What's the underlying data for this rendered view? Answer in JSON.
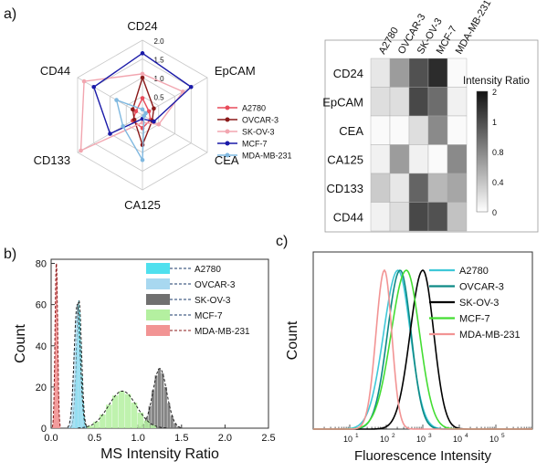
{
  "panel_labels": {
    "a": "a)",
    "b": "b)",
    "c": "c)"
  },
  "colors": {
    "A2780": "#e84c5b",
    "OVCAR-3": "#8b1a1a",
    "SK-OV-3": "#f2a6b0",
    "MCF-7": "#1a1aa8",
    "MDA-MB-231": "#7fb8e0"
  },
  "chart_data": [
    {
      "type": "radar",
      "panel": "a-left",
      "axes": [
        "CD24",
        "EpCAM",
        "CEA",
        "CA125",
        "CD133",
        "CD44"
      ],
      "rlim": [
        0,
        2.0
      ],
      "rticks": [
        "0.5",
        "1.0",
        "1.5",
        "2.0"
      ],
      "legend_position": "right",
      "series": [
        {
          "name": "A2780",
          "values": [
            0.45,
            0.2,
            0.25,
            0.35,
            0.3,
            0.2
          ]
        },
        {
          "name": "OVCAR-3",
          "values": [
            1.0,
            0.35,
            0.3,
            0.8,
            0.25,
            0.3
          ]
        },
        {
          "name": "SK-OV-3",
          "values": [
            1.1,
            1.25,
            0.5,
            0.2,
            1.9,
            1.8
          ]
        },
        {
          "name": "MCF-7",
          "values": [
            1.65,
            1.5,
            0.35,
            0.1,
            1.0,
            1.5
          ]
        },
        {
          "name": "MDA-MB-231",
          "values": [
            0.15,
            0.1,
            0.05,
            1.2,
            0.6,
            0.8
          ]
        }
      ]
    },
    {
      "type": "heatmap",
      "panel": "a-right",
      "columns": [
        "A2780",
        "OVCAR-3",
        "SK-OV-3",
        "MCF-7",
        "MDA-MB-231"
      ],
      "rows": [
        "CD24",
        "EpCAM",
        "CEA",
        "CA125",
        "CD133",
        "CD44"
      ],
      "values": [
        [
          0.2,
          1.0,
          1.8,
          2.2,
          0.0
        ],
        [
          0.3,
          0.3,
          1.9,
          1.5,
          0.1
        ],
        [
          0.0,
          0.0,
          0.3,
          1.2,
          0.0
        ],
        [
          0.1,
          1.0,
          0.1,
          0.0,
          1.2
        ],
        [
          0.5,
          0.2,
          1.6,
          0.7,
          0.9
        ],
        [
          0.1,
          0.3,
          1.9,
          1.8,
          0.6
        ]
      ],
      "colorbar_label": "Intensity Ratio",
      "colorbar_ticks": [
        "0",
        "0.4",
        "0.8",
        "1",
        "2"
      ],
      "vlim": [
        0,
        2.4
      ]
    },
    {
      "type": "histogram",
      "panel": "b",
      "xlabel": "MS Intensity Ratio",
      "ylabel": "Count",
      "xlim": [
        0,
        2.5
      ],
      "ylim": [
        0,
        82
      ],
      "xticks": [
        "0.0",
        "0.5",
        "1.0",
        "1.5",
        "2.0",
        "2.5"
      ],
      "yticks": [
        "0",
        "20",
        "40",
        "60",
        "80"
      ],
      "series": [
        {
          "name": "A2780",
          "color": "#4fe0ee",
          "peak_x": 0.32,
          "peak_y": 62,
          "width": 0.03
        },
        {
          "name": "OVCAR-3",
          "color": "#a8d8f0",
          "peak_x": 0.3,
          "peak_y": 60,
          "width": 0.035
        },
        {
          "name": "SK-OV-3",
          "color": "#707070",
          "peak_x": 1.25,
          "peak_y": 29,
          "width": 0.08
        },
        {
          "name": "MCF-7",
          "color": "#b4f0a0",
          "peak_x": 0.82,
          "peak_y": 18,
          "width": 0.16
        },
        {
          "name": "MDA-MB-231",
          "color": "#f29494",
          "peak_x": 0.06,
          "peak_y": 80,
          "width": 0.015
        }
      ]
    },
    {
      "type": "line",
      "panel": "c",
      "xlabel": "Fluorescence Intensity",
      "ylabel": "Count",
      "x_scale": "log",
      "xlim": [
        1,
        1000000
      ],
      "xticks": [
        "10",
        "10",
        "10",
        "10",
        "10"
      ],
      "xtick_exponents": [
        "1",
        "2",
        "3",
        "4",
        "5"
      ],
      "series": [
        {
          "name": "A2780",
          "color": "#3fc8d8",
          "peak_log10": 2.32,
          "sigma": 0.34
        },
        {
          "name": "OVCAR-3",
          "color": "#0e8a86",
          "peak_log10": 2.38,
          "sigma": 0.3
        },
        {
          "name": "SK-OV-3",
          "color": "#000000",
          "peak_log10": 3.0,
          "sigma": 0.3
        },
        {
          "name": "MCF-7",
          "color": "#44dd33",
          "peak_log10": 2.55,
          "sigma": 0.36
        },
        {
          "name": "MDA-MB-231",
          "color": "#f29494",
          "peak_log10": 1.95,
          "sigma": 0.2
        }
      ]
    }
  ]
}
